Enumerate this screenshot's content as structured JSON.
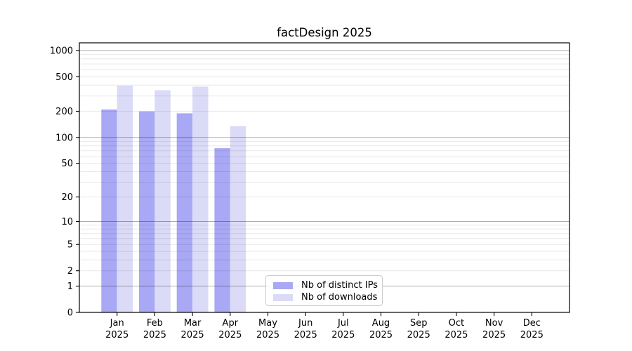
{
  "chart_data": {
    "type": "bar",
    "title": "factDesign 2025",
    "yscale": "log1p",
    "ylim": [
      0,
      1224
    ],
    "y_ticks": [
      0,
      1,
      2,
      5,
      10,
      20,
      50,
      100,
      200,
      500,
      1000
    ],
    "x_tick_months": [
      "Jan",
      "Feb",
      "Mar",
      "Apr",
      "May",
      "Jun",
      "Jul",
      "Aug",
      "Sep",
      "Oct",
      "Nov",
      "Dec"
    ],
    "x_tick_year": "2025",
    "grid": "horizontal major+minor, drawn over bars",
    "legend_position": "inside lower-center",
    "series": [
      {
        "name": "Nb of distinct IPs",
        "color": "#a8a8f5",
        "values": [
          210,
          200,
          190,
          75,
          0,
          0,
          0,
          0,
          0,
          0,
          0,
          0
        ]
      },
      {
        "name": "Nb of downloads",
        "color": "#dbdbf7",
        "values": [
          395,
          350,
          385,
          135,
          0,
          0,
          0,
          0,
          0,
          0,
          0,
          0
        ]
      }
    ],
    "colors": {
      "axis": "#000000",
      "major_grid": "rgba(0,0,0,0.32)",
      "minor_grid": "rgba(0,0,0,0.09)",
      "tick_label": "#000000",
      "background": "#ffffff"
    }
  }
}
